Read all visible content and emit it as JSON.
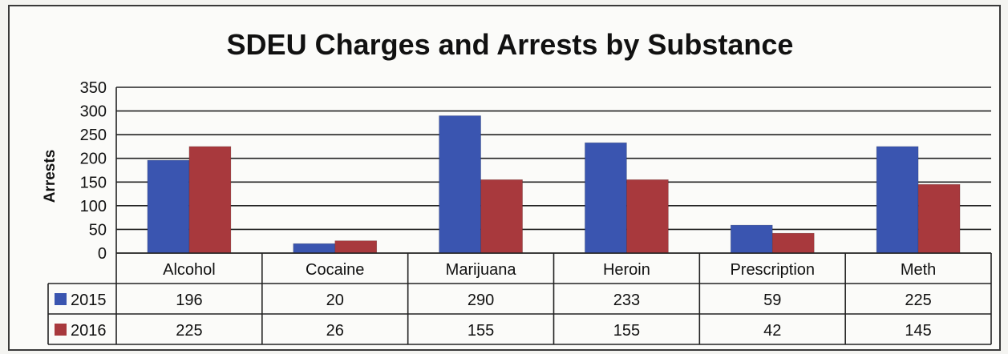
{
  "chart_data": {
    "type": "bar",
    "title": "SDEU Charges and Arrests by Substance",
    "xlabel": "",
    "ylabel": "Arrests",
    "ylim": [
      0,
      350
    ],
    "yticks": [
      0,
      50,
      100,
      150,
      200,
      250,
      300,
      350
    ],
    "grid": true,
    "legend": "data-table-left",
    "categories": [
      "Alcohol",
      "Cocaine",
      "Marijuana",
      "Heroin",
      "Prescription",
      "Meth"
    ],
    "series": [
      {
        "name": "2015",
        "color": "#3a55b0",
        "values": [
          196,
          20,
          290,
          233,
          59,
          225
        ]
      },
      {
        "name": "2016",
        "color": "#a8393d",
        "values": [
          225,
          26,
          155,
          155,
          42,
          145
        ]
      }
    ]
  }
}
